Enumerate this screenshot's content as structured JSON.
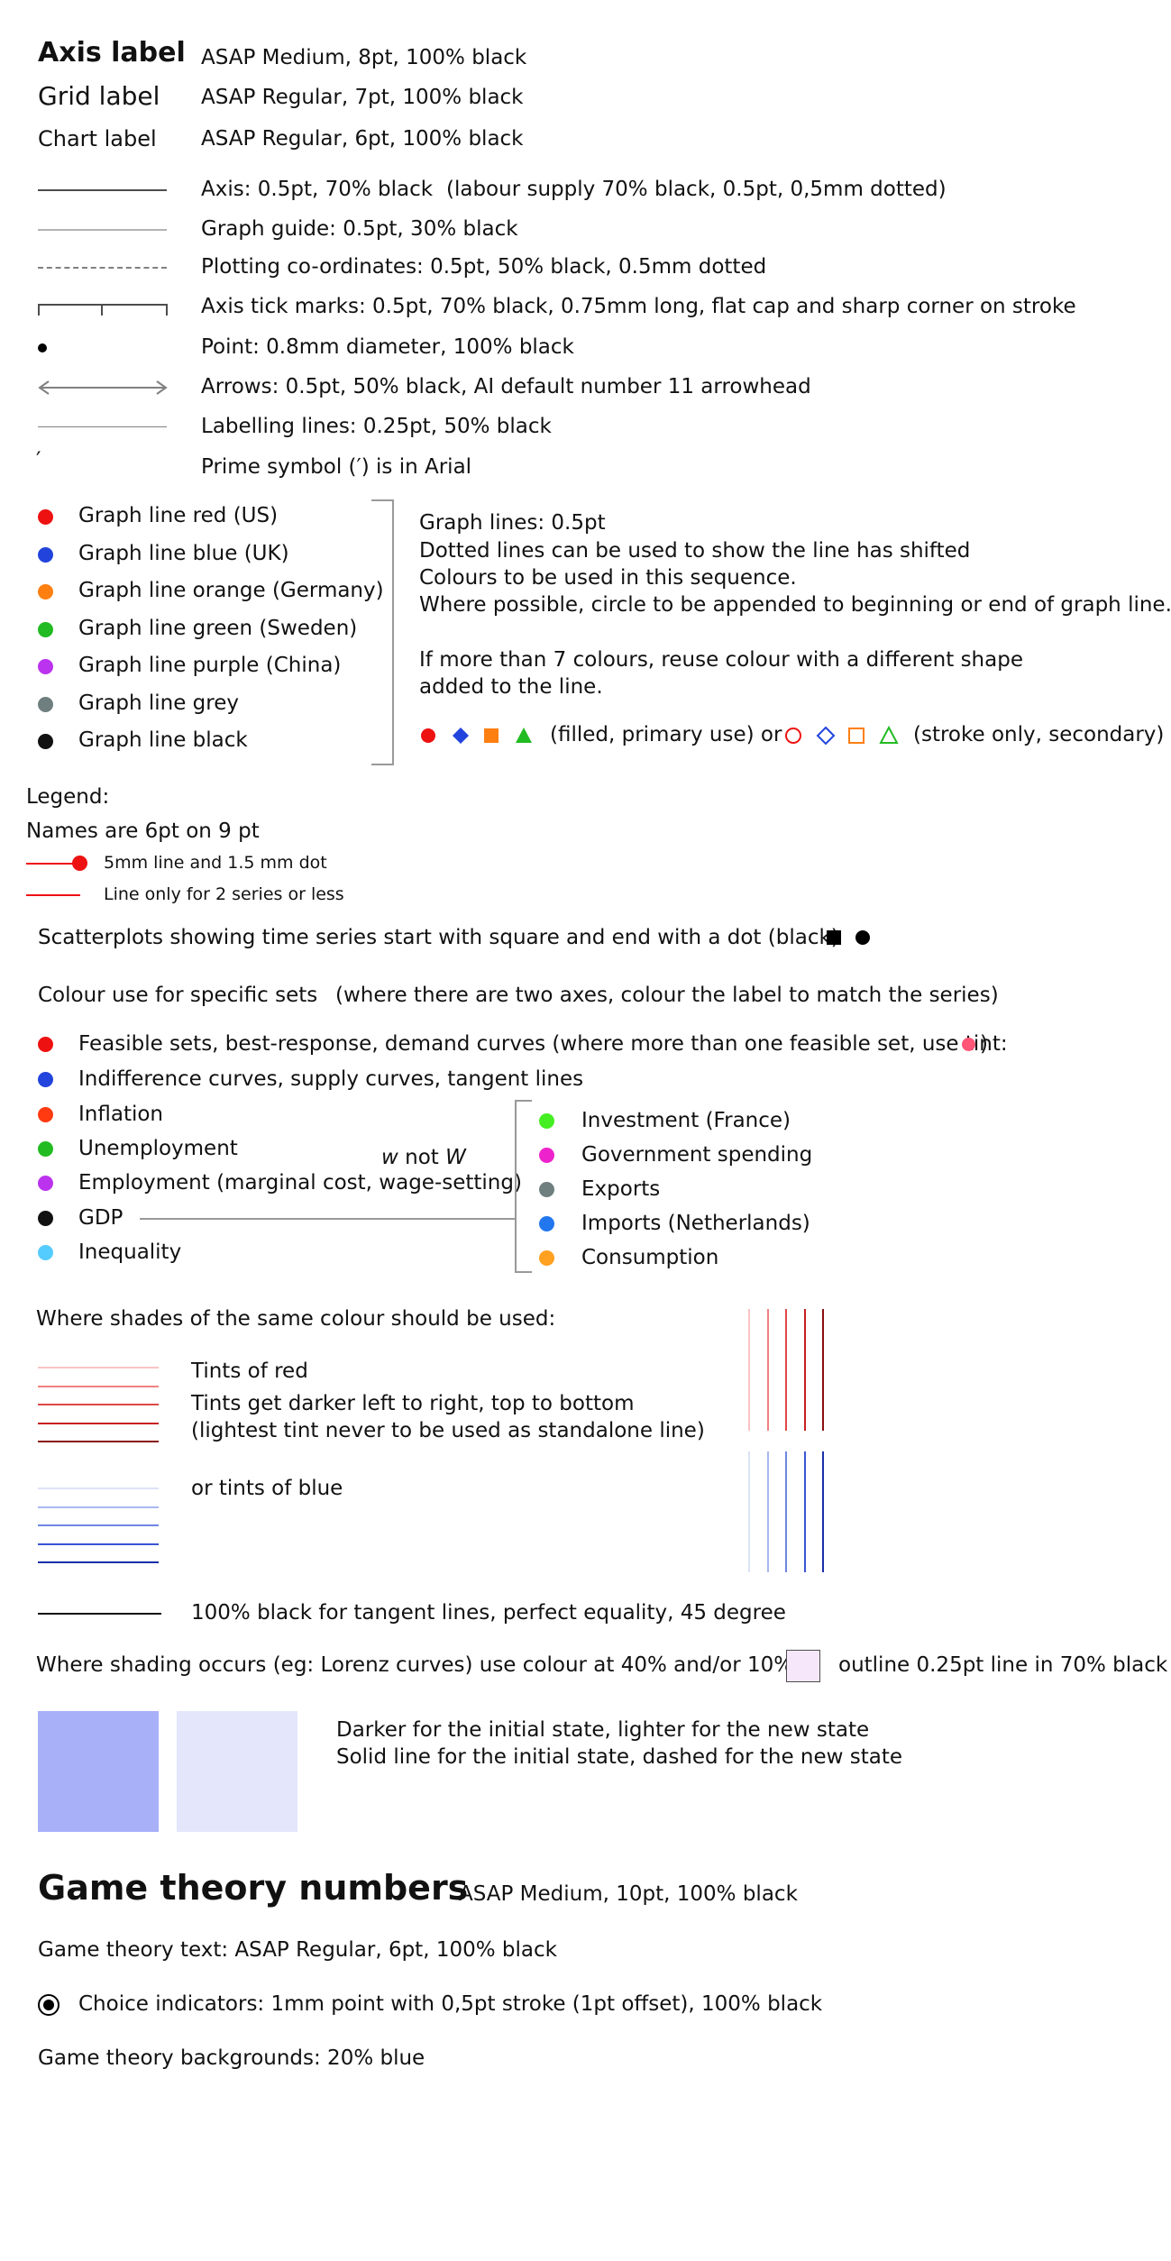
{
  "typography": {
    "axis_label": {
      "name": "Axis label",
      "spec": "ASAP Medium, 8pt, 100% black"
    },
    "grid_label": {
      "name": "Grid label",
      "spec": "ASAP Regular, 7pt, 100% black"
    },
    "chart_label": {
      "name": "Chart label",
      "spec": "ASAP Regular, 6pt, 100% black"
    }
  },
  "lines": {
    "axis": "Axis: 0.5pt,  70% black",
    "axis_note": "(labour supply 70% black, 0.5pt, 0,5mm dotted)",
    "graph_guide": "Graph guide: 0.5pt, 30% black",
    "plotting": "Plotting co-ordinates: 0.5pt, 50% black, 0.5mm dotted",
    "ticks": "Axis tick marks: 0.5pt,  70% black, 0.75mm long, flat cap and sharp corner on stroke",
    "point": "Point: 0.8mm diameter, 100% black",
    "arrows": "Arrows: 0.5pt, 50% black, AI default number 11 arrowhead",
    "labelling": "Labelling lines: 0.25pt, 50% black",
    "prime_glyph": "′",
    "prime": "Prime symbol (′) is in Arial"
  },
  "graph_lines": {
    "items": [
      {
        "label": "Graph line red (US)",
        "color": "#ee1111"
      },
      {
        "label": "Graph line blue (UK)",
        "color": "#2244dd"
      },
      {
        "label": "Graph line orange (Germany)",
        "color": "#ff7f11"
      },
      {
        "label": "Graph line green (Sweden)",
        "color": "#22bb22"
      },
      {
        "label": "Graph line purple (China)",
        "color": "#bb33ee"
      },
      {
        "label": "Graph line grey",
        "color": "#6f7f7f"
      },
      {
        "label": "Graph line black",
        "color": "#111111"
      }
    ],
    "notes": {
      "l1": "Graph lines: 0.5pt",
      "l2": "Dotted lines can be used to show the line has shifted",
      "l3": "Colours to be used in this sequence.",
      "l4": "Where possible, circle to be appended to beginning or end of graph line.",
      "l5": "If more than 7 colours, reuse colour with a different shape",
      "l6": "added to the line.",
      "filled": "(filled, primary use) or",
      "stroke": "(stroke only, secondary)"
    }
  },
  "legend": {
    "title": "Legend:",
    "names": "Names are 6pt on 9 pt",
    "dot_line": "5mm line and 1.5 mm dot",
    "line_only": "Line only for 2 series or less"
  },
  "scatter": {
    "text": "Scatterplots showing time series start with square and end with a dot (black)"
  },
  "colour_sets": {
    "title": "Colour use for specific sets",
    "note": "(where there are two axes, colour the label to match the series)",
    "left": [
      {
        "label": "Feasible sets, best-response, demand curves (where more than one feasible set, use tint:",
        "color": "#ee1111"
      },
      {
        "label": "Indifference curves, supply curves, tangent lines",
        "color": "#2244dd"
      },
      {
        "label": "Inflation",
        "color": "#ff3a11"
      },
      {
        "label": "Unemployment",
        "color": "#22bb22"
      },
      {
        "label": "Employment (marginal cost, wage-setting)",
        "color": "#bb33ee"
      },
      {
        "label": "GDP",
        "color": "#111111"
      },
      {
        "label": "Inequality",
        "color": "#55ccff"
      }
    ],
    "tint_close": ")",
    "tint_color": "#ff5577",
    "w_lower": "w",
    "w_mid": " not ",
    "w_upper": "W",
    "right": [
      {
        "label": "Investment (France)",
        "color": "#44ee22"
      },
      {
        "label": "Government spending",
        "color": "#ee22cc"
      },
      {
        "label": "Exports",
        "color": "#6f7f7f"
      },
      {
        "label": "Imports (Netherlands)",
        "color": "#2277ee"
      },
      {
        "label": "Consumption",
        "color": "#ffa020"
      }
    ]
  },
  "shades": {
    "title": "Where shades of the same colour should be used:",
    "red_l1": "Tints of red",
    "red_l2": "Tints get darker left to right, top to bottom",
    "red_l3": "(lightest tint never to be used as standalone line)",
    "blue": "or tints of blue",
    "black": "100% black for tangent lines, perfect equality, 45 degree",
    "red_tints": [
      "#f9c4c4",
      "#f08080",
      "#e04848",
      "#c82020",
      "#8a1010"
    ],
    "blue_tints": [
      "#dbe3f7",
      "#a8b8ef",
      "#6f86e2",
      "#3a55d4",
      "#1a2fa8"
    ]
  },
  "shading": {
    "text": "Where shading occurs (eg: Lorenz curves) use colour at 40% and/or 10%",
    "outline": "outline 0.25pt line in 70% black",
    "initial": "Darker for the initial state, lighter for the new state",
    "solid": "Solid line for the initial state, dashed for the new state",
    "dark": "#a8b0f8",
    "light": "#e4e6fc",
    "swatch": "#f6e8fa"
  },
  "game": {
    "title": "Game theory numbers",
    "title_spec": "ASAP Medium, 10pt, 100% black",
    "text": "Game theory text: ASAP Regular, 6pt, 100% black",
    "choice": "Choice indicators: 1mm point with 0,5pt stroke (1pt offset), 100% black",
    "backgrounds": "Game theory backgrounds: 20% blue"
  }
}
